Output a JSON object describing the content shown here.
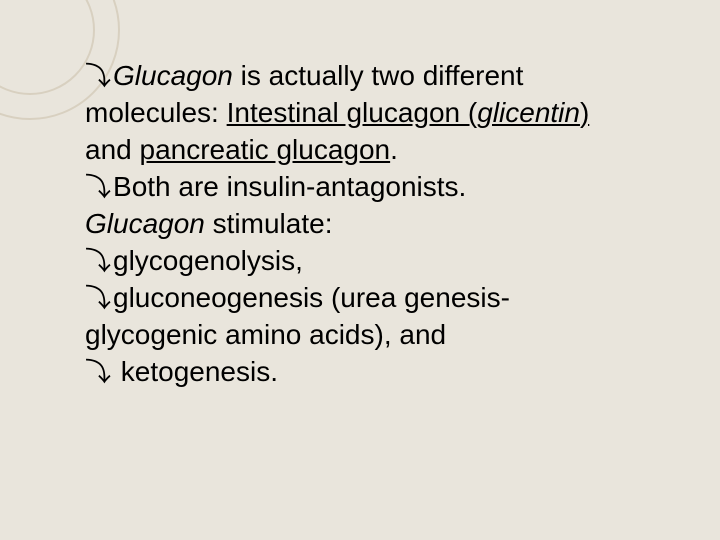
{
  "slide": {
    "background_color": "#e9e5dc",
    "ring_color": "#d8d0c0",
    "text_color": "#000000",
    "font_size_pt": 28,
    "bullet_glyph": "⤵",
    "lines": {
      "l1a": "Glucagon",
      "l1b": " is actually two different",
      "l2a": "molecules: ",
      "l2b": "Intestinal glucagon (",
      "l2c": "glicentin",
      "l2d": ")",
      "l3a": "and ",
      "l3b": "pancreatic glucagon",
      "l3c": ".",
      "l4": "Both are insulin-antagonists.",
      "l5a": "Glucagon",
      "l5b": " stimulate:",
      "l6": "glycogenolysis,",
      "l7a": "gluconeogenesis (urea genesis-",
      "l7b": "glycogenic amino acids), and",
      "l8": " ketogenesis."
    }
  }
}
